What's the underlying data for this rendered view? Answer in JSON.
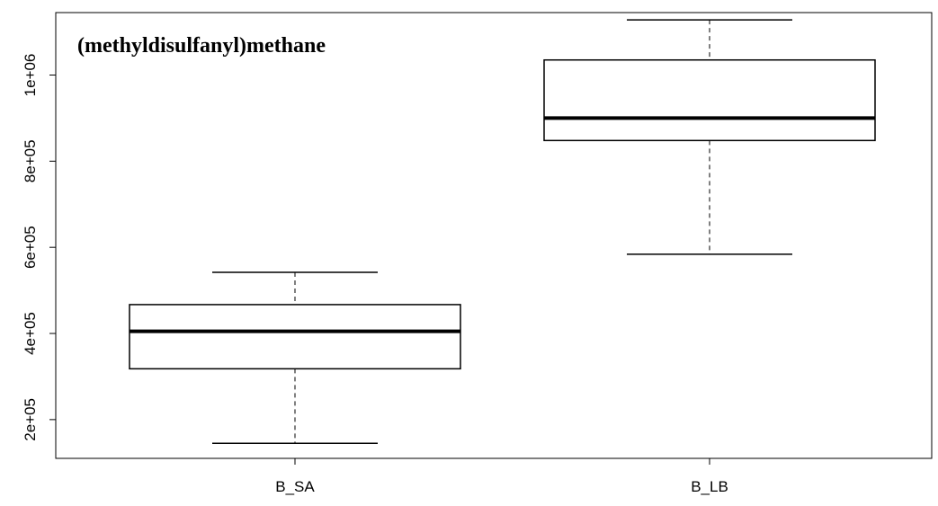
{
  "chart_data": {
    "type": "boxplot",
    "title": "(methyldisulfanyl)methane",
    "xlabel": "",
    "ylabel": "",
    "categories": [
      "B_SA",
      "B_LB"
    ],
    "boxes": [
      {
        "category": "B_SA",
        "whisker_low": 145000,
        "q1": 318000,
        "median": 405000,
        "q3": 467000,
        "whisker_high": 542000
      },
      {
        "category": "B_LB",
        "whisker_low": 584000,
        "q1": 848000,
        "median": 900000,
        "q3": 1035000,
        "whisker_high": 1128000
      }
    ],
    "ylim": [
      110000,
      1145000
    ],
    "y_ticks": [
      200000,
      400000,
      600000,
      800000,
      1000000
    ],
    "y_tick_labels": [
      "2e+05",
      "4e+05",
      "6e+05",
      "8e+05",
      "1e+06"
    ],
    "grid": false,
    "legend": "none"
  }
}
